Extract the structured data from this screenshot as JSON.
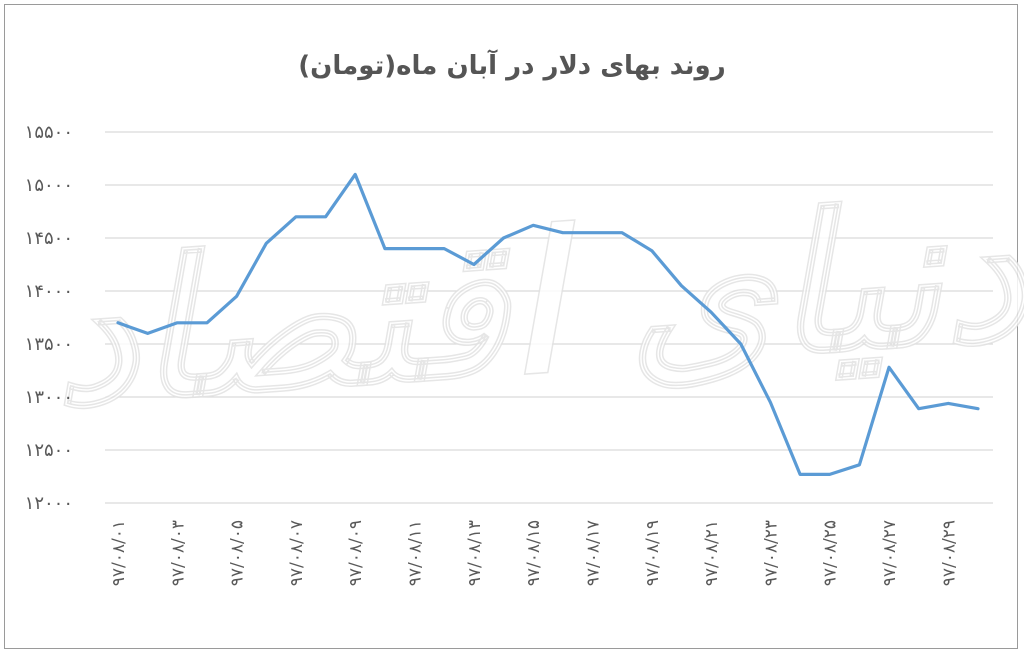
{
  "chart_data": {
    "type": "line",
    "title": "روند بهای دلار در آبان ماه(تومان)",
    "xlabel": "",
    "ylabel": "",
    "ylim": [
      12000,
      15500
    ],
    "yticks": [
      "۱۲۰۰۰",
      "۱۲۵۰۰",
      "۱۳۰۰۰",
      "۱۳۵۰۰",
      "۱۴۰۰۰",
      "۱۴۵۰۰",
      "۱۵۰۰۰",
      "۱۵۵۰۰"
    ],
    "ytick_values": [
      12000,
      12500,
      13000,
      13500,
      14000,
      14500,
      15000,
      15500
    ],
    "grid": true,
    "legend": "none",
    "line_color": "#5b9bd5",
    "grid_color": "#d9d9d9",
    "x": [
      "97/08/01",
      "97/08/02",
      "97/08/03",
      "97/08/04",
      "97/08/05",
      "97/08/06",
      "97/08/07",
      "97/08/08",
      "97/08/09",
      "97/08/10",
      "97/08/11",
      "97/08/12",
      "97/08/13",
      "97/08/14",
      "97/08/15",
      "97/08/16",
      "97/08/17",
      "97/08/18",
      "97/08/19",
      "97/08/20",
      "97/08/21",
      "97/08/22",
      "97/08/23",
      "97/08/24",
      "97/08/25",
      "97/08/26",
      "97/08/27",
      "97/08/28",
      "97/08/29",
      "97/08/30"
    ],
    "x_tick_labels": [
      "۹۷/۰۸/۰۱",
      "۹۷/۰۸/۰۳",
      "۹۷/۰۸/۰۵",
      "۹۷/۰۸/۰۷",
      "۹۷/۰۸/۰۹",
      "۹۷/۰۸/۱۱",
      "۹۷/۰۸/۱۳",
      "۹۷/۰۸/۱۵",
      "۹۷/۰۸/۱۷",
      "۹۷/۰۸/۱۹",
      "۹۷/۰۸/۲۱",
      "۹۷/۰۸/۲۳",
      "۹۷/۰۸/۲۵",
      "۹۷/۰۸/۲۷",
      "۹۷/۰۸/۲۹"
    ],
    "values": [
      13700,
      13600,
      13700,
      13700,
      13950,
      14450,
      14700,
      14700,
      15100,
      14400,
      14400,
      14400,
      14250,
      14500,
      14620,
      14550,
      14550,
      14550,
      14380,
      14050,
      13800,
      13500,
      12950,
      12270,
      12270,
      12360,
      13280,
      12890,
      12940,
      12890
    ]
  },
  "watermark": {
    "text": "دنیای اقتصاد"
  }
}
